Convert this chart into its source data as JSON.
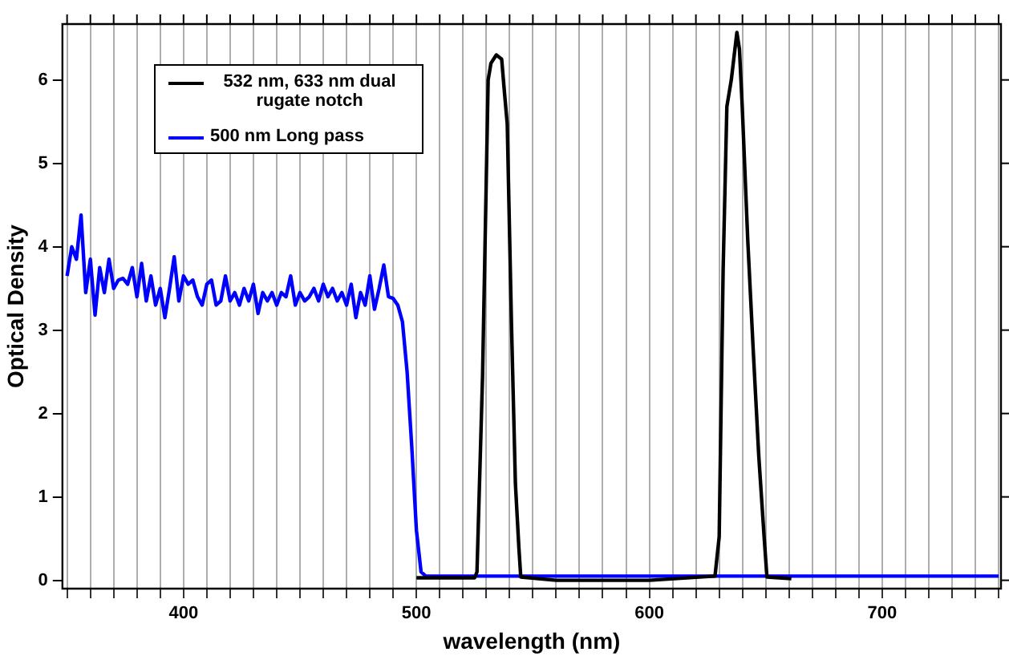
{
  "chart_data": {
    "type": "line",
    "xlabel": "wavelength (nm)",
    "ylabel": "Optical Density",
    "xlim": [
      348,
      751
    ],
    "ylim": [
      -0.1,
      6.67
    ],
    "xticks": [
      {
        "value": 350,
        "label": null
      },
      {
        "value": 360,
        "label": null
      },
      {
        "value": 370,
        "label": null
      },
      {
        "value": 380,
        "label": null
      },
      {
        "value": 390,
        "label": null
      },
      400,
      {
        "value": 410,
        "label": null
      },
      {
        "value": 420,
        "label": null
      },
      {
        "value": 430,
        "label": null
      },
      {
        "value": 440,
        "label": null
      },
      {
        "value": 450,
        "label": null
      },
      {
        "value": 460,
        "label": null
      },
      {
        "value": 470,
        "label": null
      },
      {
        "value": 480,
        "label": null
      },
      {
        "value": 490,
        "label": null
      },
      500,
      {
        "value": 510,
        "label": null
      },
      {
        "value": 520,
        "label": null
      },
      {
        "value": 530,
        "label": null
      },
      {
        "value": 540,
        "label": null
      },
      {
        "value": 550,
        "label": null
      },
      {
        "value": 560,
        "label": null
      },
      {
        "value": 570,
        "label": null
      },
      {
        "value": 580,
        "label": null
      },
      {
        "value": 590,
        "label": null
      },
      600,
      {
        "value": 610,
        "label": null
      },
      {
        "value": 620,
        "label": null
      },
      {
        "value": 630,
        "label": null
      },
      {
        "value": 640,
        "label": null
      },
      {
        "value": 650,
        "label": null
      },
      {
        "value": 660,
        "label": null
      },
      {
        "value": 670,
        "label": null
      },
      {
        "value": 680,
        "label": null
      },
      {
        "value": 690,
        "label": null
      },
      700,
      {
        "value": 710,
        "label": null
      },
      {
        "value": 720,
        "label": null
      },
      {
        "value": 730,
        "label": null
      },
      {
        "value": 740,
        "label": null
      },
      {
        "value": 750,
        "label": null
      }
    ],
    "yticks": [
      0,
      1,
      2,
      3,
      4,
      5,
      6
    ],
    "grid": "x",
    "legend": "top left",
    "marker": "none",
    "line_style": "solid",
    "series": [
      {
        "name": "532 nm, 633 nm dual rugate notch",
        "color": "#000000",
        "x": [
          500,
          525,
          526,
          528.4,
          530.8,
          532,
          534.3,
          536.6,
          537.8,
          539,
          540.8,
          542.5,
          544,
          544.8,
          560,
          600,
          628.2,
          630,
          631.7,
          633.3,
          635.2,
          637.6,
          638.7,
          639.9,
          642.3,
          644.6,
          647,
          649.3,
          650.5,
          661
        ],
        "values": [
          0.03,
          0.03,
          0.1,
          2.45,
          6.0,
          6.2,
          6.3,
          6.25,
          5.85,
          5.47,
          3.09,
          1.16,
          0.39,
          0.04,
          0.0,
          0.0,
          0.05,
          0.52,
          3.73,
          5.68,
          6.0,
          6.57,
          6.37,
          5.68,
          4.06,
          2.77,
          1.49,
          0.52,
          0.04,
          0.02
        ]
      },
      {
        "name": "500 nm Long pass",
        "color": "#0000ff",
        "x": [
          350,
          352,
          354,
          356,
          358,
          360,
          362,
          364,
          366,
          368,
          370,
          372,
          374,
          376,
          378,
          380,
          382,
          384,
          386,
          388,
          390,
          392,
          394,
          396,
          398,
          400,
          402,
          404,
          406,
          408,
          410,
          412,
          414,
          416,
          418,
          420,
          422,
          424,
          426,
          428,
          430,
          432,
          434,
          436,
          438,
          440,
          442,
          444,
          446,
          448,
          450,
          452,
          454,
          456,
          458,
          460,
          462,
          464,
          466,
          468,
          470,
          472,
          474,
          476,
          478,
          480,
          482,
          484,
          486,
          488,
          490,
          492,
          494,
          496,
          498,
          500,
          502,
          504,
          750
        ],
        "values": [
          3.65,
          4.0,
          3.85,
          4.38,
          3.45,
          3.85,
          3.18,
          3.75,
          3.45,
          3.85,
          3.5,
          3.6,
          3.62,
          3.55,
          3.75,
          3.4,
          3.8,
          3.35,
          3.65,
          3.3,
          3.5,
          3.15,
          3.5,
          3.88,
          3.35,
          3.65,
          3.55,
          3.6,
          3.4,
          3.3,
          3.55,
          3.6,
          3.3,
          3.35,
          3.65,
          3.35,
          3.45,
          3.3,
          3.5,
          3.35,
          3.55,
          3.2,
          3.45,
          3.35,
          3.45,
          3.3,
          3.45,
          3.4,
          3.65,
          3.3,
          3.45,
          3.35,
          3.4,
          3.5,
          3.35,
          3.55,
          3.4,
          3.5,
          3.35,
          3.45,
          3.3,
          3.55,
          3.15,
          3.45,
          3.3,
          3.65,
          3.25,
          3.5,
          3.78,
          3.4,
          3.38,
          3.3,
          3.1,
          2.5,
          1.6,
          0.6,
          0.1,
          0.05,
          0.05
        ]
      }
    ]
  }
}
